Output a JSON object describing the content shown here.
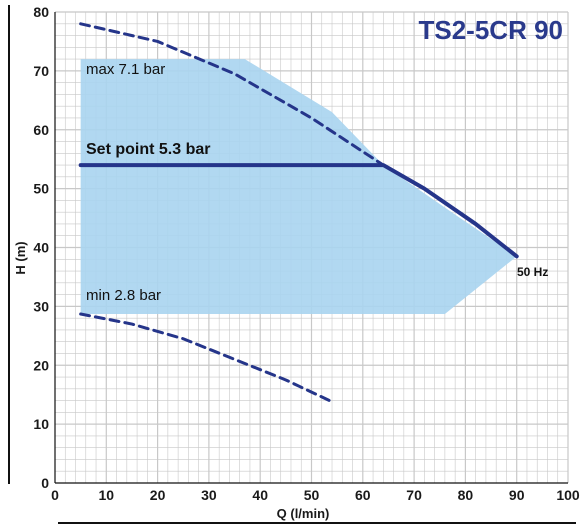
{
  "chart_data": {
    "type": "line",
    "title": "TS2-5CR 90",
    "xlabel": "Q (l/min)",
    "ylabel": "H (m)",
    "xlim": [
      0,
      100
    ],
    "ylim": [
      0,
      80
    ],
    "x_ticks": [
      0,
      10,
      20,
      30,
      40,
      50,
      60,
      70,
      80,
      90,
      100
    ],
    "y_ticks": [
      0,
      10,
      20,
      30,
      40,
      50,
      60,
      70,
      80
    ],
    "grid": "on",
    "colors": {
      "curve": "#25358a",
      "region_fill": "#a8d4ef",
      "grid": "#c8c8c8",
      "title": "#2a3a8c"
    },
    "operating_region": {
      "points": [
        [
          5,
          72
        ],
        [
          37,
          72
        ],
        [
          54,
          63
        ],
        [
          64,
          54
        ],
        [
          79,
          45
        ],
        [
          90,
          38.5
        ],
        [
          76,
          28.7
        ],
        [
          5,
          28.7
        ]
      ]
    },
    "series": [
      {
        "style": "dashed",
        "points": [
          [
            5,
            78
          ],
          [
            20,
            75
          ],
          [
            35,
            69.5
          ],
          [
            50,
            62
          ],
          [
            64,
            54
          ]
        ]
      },
      {
        "style": "solid",
        "points": [
          [
            5,
            54
          ],
          [
            64,
            54
          ],
          [
            72,
            50
          ],
          [
            82,
            44
          ],
          [
            90,
            38.5
          ]
        ]
      },
      {
        "style": "dashed",
        "points": [
          [
            5,
            28.7
          ],
          [
            15,
            27
          ],
          [
            25,
            24.5
          ],
          [
            35,
            21
          ],
          [
            45,
            17.5
          ],
          [
            54,
            13.8
          ]
        ]
      }
    ],
    "annotations": {
      "max_label": "max 7.1 bar",
      "setpoint_label": "Set point 5.3 bar",
      "min_label": "min 2.8 bar",
      "freq_label": "50 Hz"
    }
  }
}
